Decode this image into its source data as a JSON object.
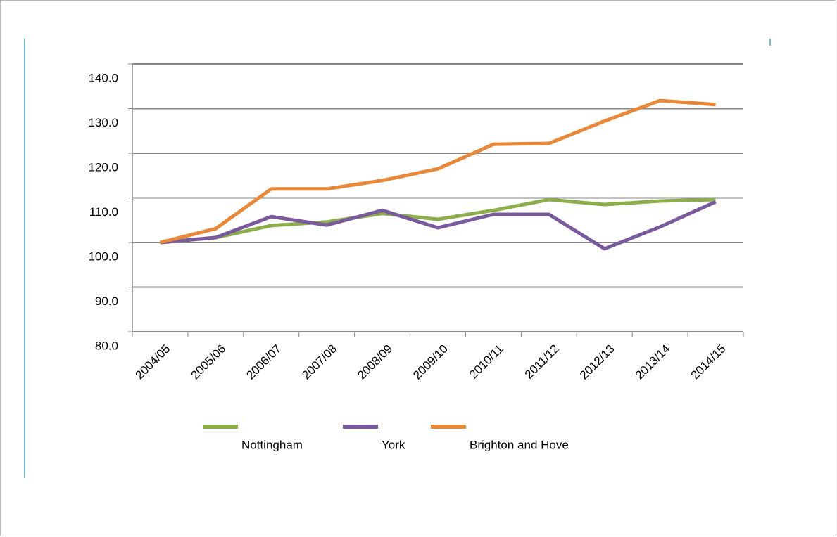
{
  "chart_data": {
    "type": "line",
    "categories": [
      "2004/05",
      "2005/06",
      "2006/07",
      "2007/08",
      "2008/09",
      "2009/10",
      "2010/11",
      "2011/12",
      "2012/13",
      "2013/14",
      "2014/15"
    ],
    "series": [
      {
        "name": "Nottingham",
        "color": "#8cad4b",
        "values": [
          100,
          101.1,
          103.8,
          104.6,
          106.5,
          105.2,
          107.2,
          109.6,
          108.5,
          109.3,
          109.6
        ]
      },
      {
        "name": "York",
        "color": "#7a5a9c",
        "values": [
          100,
          101.1,
          105.8,
          103.9,
          107.2,
          103.3,
          106.3,
          106.3,
          98.6,
          103.5,
          109.1
        ]
      },
      {
        "name": "Brighton and Hove",
        "color": "#e8883a",
        "values": [
          100,
          103.1,
          112.0,
          112.0,
          113.9,
          116.5,
          122.0,
          122.2,
          127.2,
          131.8,
          130.9
        ]
      }
    ],
    "ylim": [
      80,
      140
    ],
    "yticks": [
      {
        "value": 80,
        "label": "80.0"
      },
      {
        "value": 90,
        "label": "90.0"
      },
      {
        "value": 100,
        "label": "100.0"
      },
      {
        "value": 110,
        "label": "110.0"
      },
      {
        "value": 120,
        "label": "120.0"
      },
      {
        "value": 130,
        "label": "130.0"
      },
      {
        "value": 140,
        "label": "140.0"
      }
    ],
    "grid": true
  }
}
